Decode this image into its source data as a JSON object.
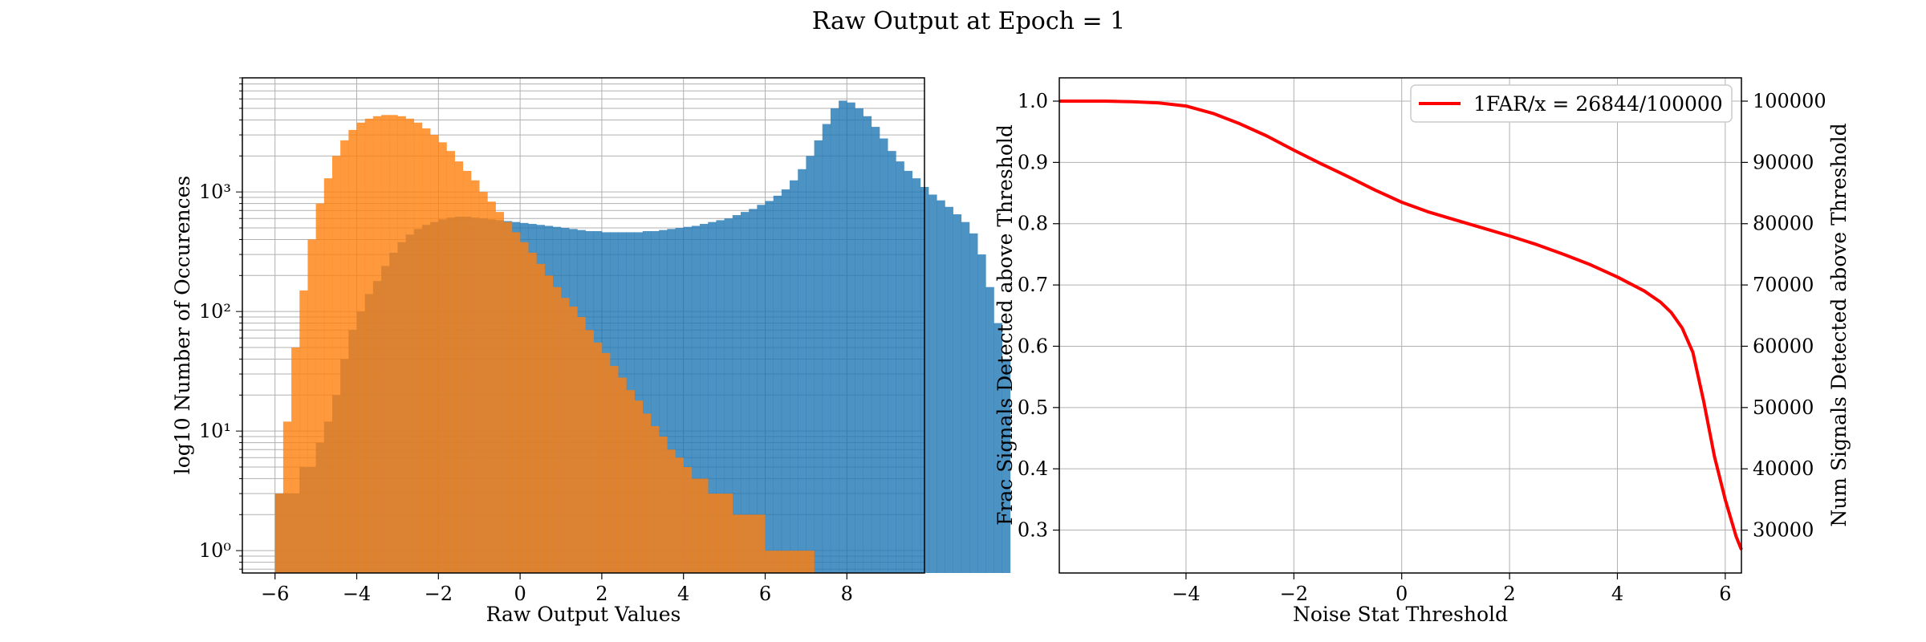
{
  "figure": {
    "title": "Raw Output at Epoch = 1"
  },
  "chart_data": [
    {
      "type": "bar",
      "subtype": "histogram",
      "xlabel": "Raw Output Values",
      "ylabel": "log10 Number of Occurences",
      "xlim": [
        -6.8,
        9.9
      ],
      "ylim": [
        0.65,
        9000
      ],
      "log_scale_y": true,
      "grid": true,
      "bin_width": 0.2,
      "x_ticks": [
        -6,
        -4,
        -2,
        0,
        2,
        4,
        6,
        8
      ],
      "x_tick_labels": [
        "−6",
        "−4",
        "−2",
        "0",
        "2",
        "4",
        "6",
        "8"
      ],
      "y_ticks": [
        1,
        10,
        100,
        1000
      ],
      "y_tick_labels": [
        "10⁰",
        "10¹",
        "10²",
        "10³"
      ],
      "colors": {
        "series_a": "#1f77b4",
        "series_b": "#ff7f0e",
        "overlap": "#e0822c"
      },
      "series": [
        {
          "bin_start": -6.0,
          "values": [
            3,
            3,
            3,
            5,
            5,
            8,
            12,
            20,
            40,
            70,
            100,
            140,
            180,
            240,
            310,
            380,
            440,
            490,
            530,
            560,
            590,
            610,
            620,
            620,
            610,
            600,
            590,
            580,
            570,
            560,
            550,
            540,
            530,
            520,
            510,
            500,
            490,
            480,
            470,
            470,
            460,
            460,
            460,
            460,
            460,
            470,
            470,
            480,
            490,
            500,
            510,
            520,
            540,
            560,
            580,
            600,
            640,
            680,
            720,
            780,
            840,
            930,
            1050,
            1250,
            1550,
            2000,
            2700,
            3700,
            5000,
            5800,
            5600,
            5000,
            4300,
            3500,
            2800,
            2200,
            1800,
            1500,
            1300,
            1100,
            950,
            850,
            750,
            650,
            560,
            450,
            300,
            160,
            80,
            40
          ]
        },
        {
          "bin_start": -6.0,
          "values": [
            3,
            12,
            50,
            150,
            400,
            800,
            1300,
            2000,
            2700,
            3300,
            3800,
            4100,
            4300,
            4400,
            4400,
            4300,
            4100,
            3800,
            3400,
            3000,
            2600,
            2200,
            1800,
            1500,
            1250,
            1000,
            830,
            680,
            560,
            460,
            380,
            310,
            250,
            200,
            160,
            130,
            110,
            90,
            70,
            55,
            45,
            35,
            28,
            22,
            18,
            14,
            11,
            9,
            7,
            6,
            5,
            4,
            4,
            3,
            3,
            3,
            2,
            2,
            2,
            2,
            1,
            1,
            1,
            1,
            1,
            1
          ]
        }
      ]
    },
    {
      "type": "line",
      "xlabel": "Noise Stat Threshold",
      "ylabel": "Frac Signals Detected above Threshold",
      "y2label": "Num Signals Detected above Threshold",
      "xlim": [
        -6.35,
        6.3
      ],
      "ylim": [
        0.23,
        1.038
      ],
      "y2lim": [
        23000,
        103800
      ],
      "grid": true,
      "legend_position": "upper-right",
      "x_ticks": [
        -4,
        -2,
        0,
        2,
        4,
        6
      ],
      "x_tick_labels": [
        "−4",
        "−2",
        "0",
        "2",
        "4",
        "6"
      ],
      "y_ticks": [
        0.3,
        0.4,
        0.5,
        0.6,
        0.7,
        0.8,
        0.9,
        1.0
      ],
      "y_tick_labels": [
        "0.3",
        "0.4",
        "0.5",
        "0.6",
        "0.7",
        "0.8",
        "0.9",
        "1.0"
      ],
      "y2_ticks": [
        30000,
        40000,
        50000,
        60000,
        70000,
        80000,
        90000,
        100000
      ],
      "y2_tick_labels": [
        "30000",
        "40000",
        "50000",
        "60000",
        "70000",
        "80000",
        "90000",
        "100000"
      ],
      "series": [
        {
          "name": "1FAR/x = 26844/100000",
          "color": "#ff0000",
          "x": [
            -6.35,
            -6.0,
            -5.5,
            -5.0,
            -4.5,
            -4.0,
            -3.5,
            -3.0,
            -2.5,
            -2.0,
            -1.5,
            -1.0,
            -0.5,
            0.0,
            0.5,
            1.0,
            1.5,
            2.0,
            2.5,
            3.0,
            3.5,
            4.0,
            4.5,
            4.8,
            5.0,
            5.2,
            5.4,
            5.6,
            5.8,
            6.0,
            6.2,
            6.3
          ],
          "y": [
            1.0,
            1.0,
            1.0,
            0.999,
            0.997,
            0.992,
            0.98,
            0.963,
            0.943,
            0.92,
            0.898,
            0.877,
            0.855,
            0.835,
            0.819,
            0.806,
            0.793,
            0.78,
            0.766,
            0.75,
            0.733,
            0.713,
            0.69,
            0.672,
            0.655,
            0.63,
            0.59,
            0.51,
            0.42,
            0.35,
            0.29,
            0.268
          ]
        }
      ]
    }
  ]
}
